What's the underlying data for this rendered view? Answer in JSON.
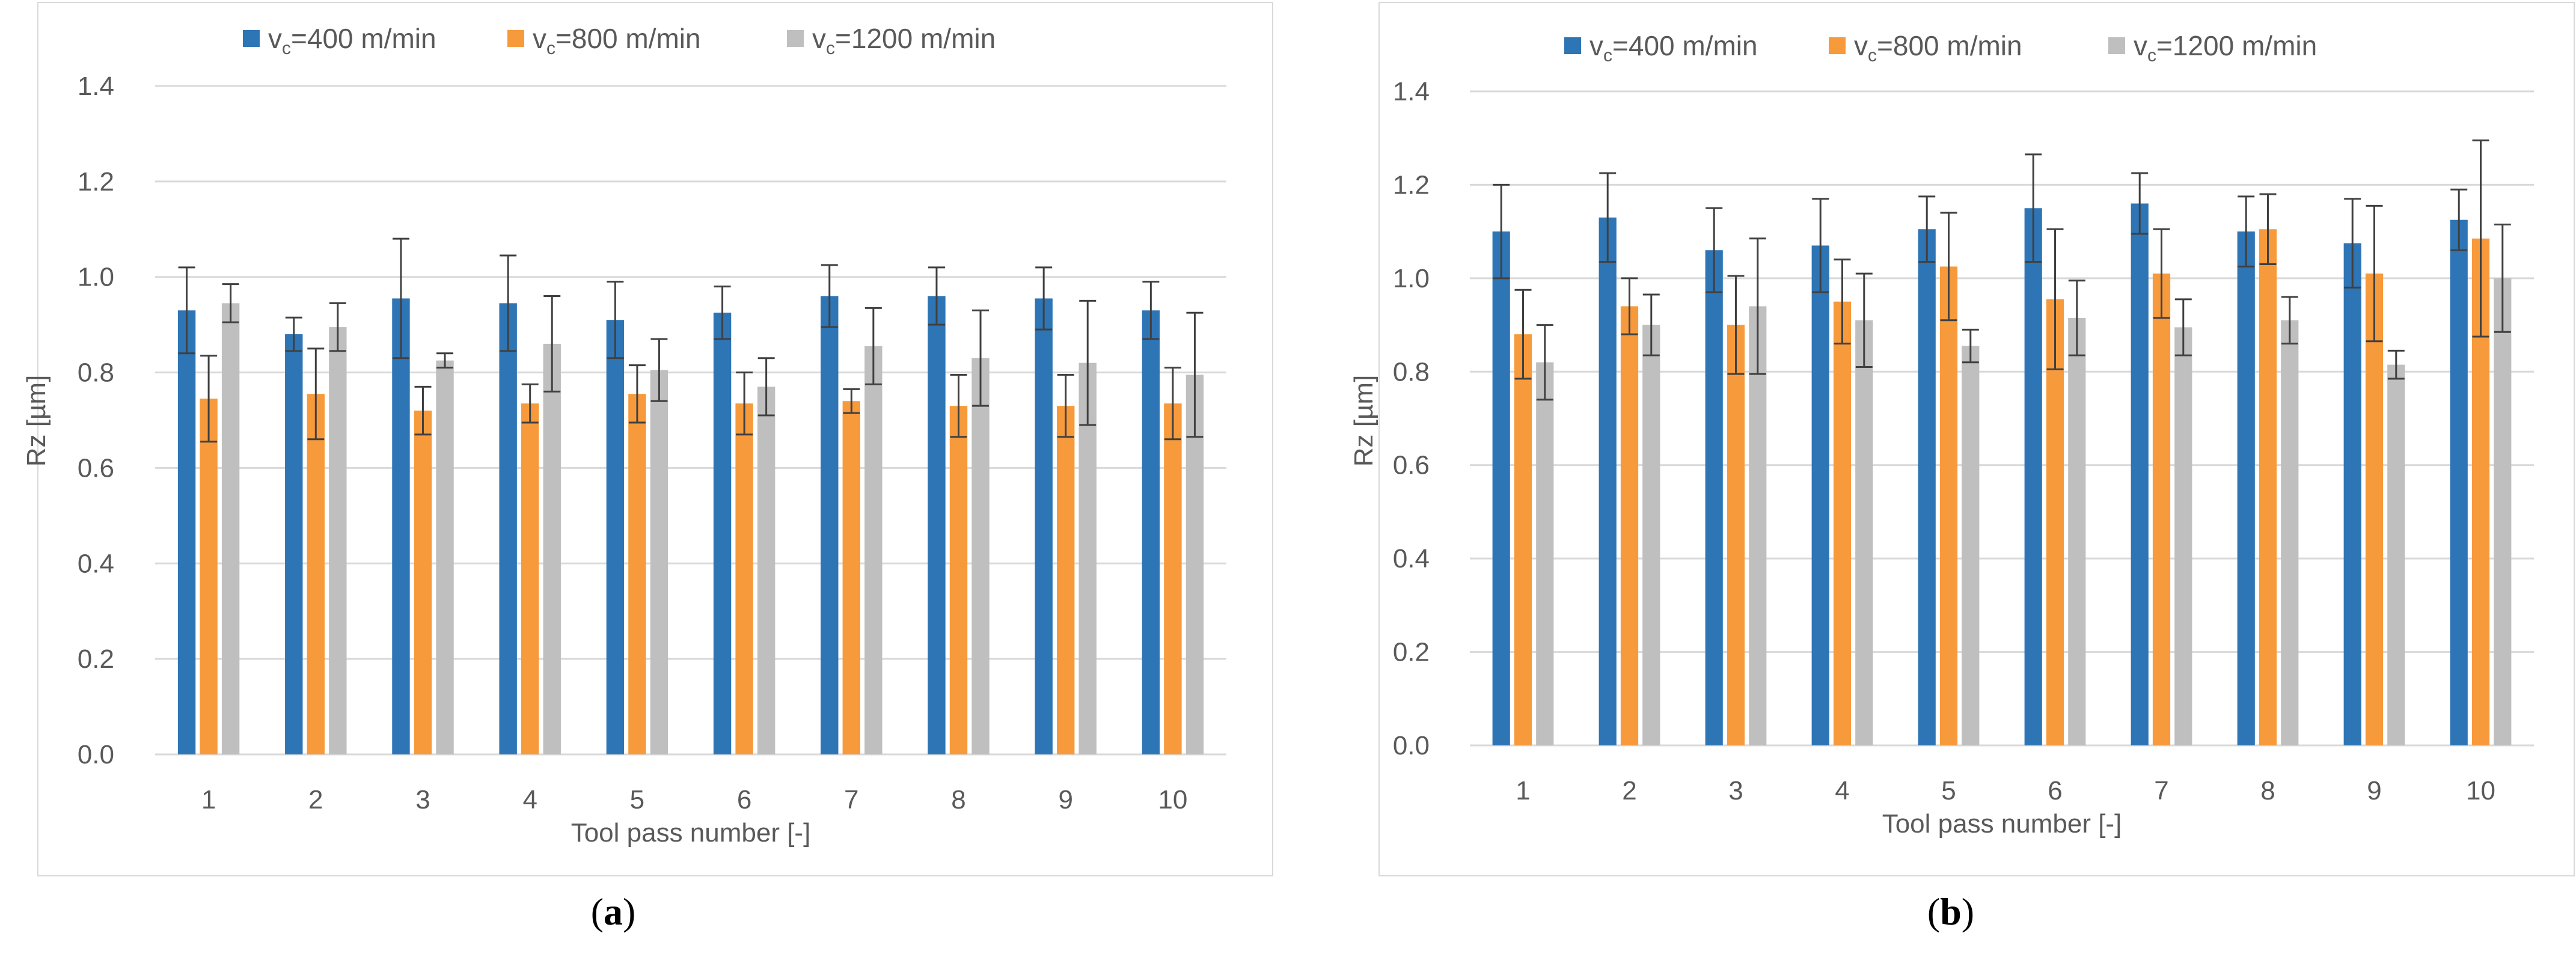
{
  "colors": {
    "series1": "#2e75b6",
    "series2": "#f79a3c",
    "series3": "#bfbfbf",
    "error": "#404040",
    "grid": "#d9d9d9"
  },
  "chart_data": [
    {
      "panel": "a",
      "type": "bar",
      "caption": {
        "open": "(",
        "letter": "a",
        "close": ")"
      },
      "xlabel": "Tool pass number [-]",
      "ylabel": "Rz [µm]",
      "ylim": [
        0,
        1.4
      ],
      "yticks": [
        "0.0",
        "0.2",
        "0.4",
        "0.6",
        "0.8",
        "1.0",
        "1.2",
        "1.4"
      ],
      "categories": [
        "1",
        "2",
        "3",
        "4",
        "5",
        "6",
        "7",
        "8",
        "9",
        "10"
      ],
      "legend_position": "top",
      "series": [
        {
          "name": "v",
          "sub": "c",
          "suffix": "=400 m/min",
          "values": [
            0.93,
            0.88,
            0.955,
            0.945,
            0.91,
            0.925,
            0.96,
            0.96,
            0.955,
            0.93
          ],
          "errors": [
            0.09,
            0.035,
            0.125,
            0.1,
            0.08,
            0.055,
            0.065,
            0.06,
            0.065,
            0.06
          ]
        },
        {
          "name": "v",
          "sub": "c",
          "suffix": "=800 m/min",
          "values": [
            0.745,
            0.755,
            0.72,
            0.735,
            0.755,
            0.735,
            0.74,
            0.73,
            0.73,
            0.735
          ],
          "errors": [
            0.09,
            0.095,
            0.05,
            0.04,
            0.06,
            0.065,
            0.025,
            0.065,
            0.065,
            0.075
          ]
        },
        {
          "name": "v",
          "sub": "c",
          "suffix": "=1200 m/min",
          "values": [
            0.945,
            0.895,
            0.825,
            0.86,
            0.805,
            0.77,
            0.855,
            0.83,
            0.82,
            0.795
          ],
          "errors": [
            0.04,
            0.05,
            0.015,
            0.1,
            0.065,
            0.06,
            0.08,
            0.1,
            0.13,
            0.13
          ]
        }
      ]
    },
    {
      "panel": "b",
      "type": "bar",
      "caption": {
        "open": "(",
        "letter": "b",
        "close": ")"
      },
      "xlabel": "Tool pass number [-]",
      "ylabel": "Rz [µm]",
      "ylim": [
        0,
        1.4
      ],
      "yticks": [
        "0.0",
        "0.2",
        "0.4",
        "0.6",
        "0.8",
        "1.0",
        "1.2",
        "1.4"
      ],
      "categories": [
        "1",
        "2",
        "3",
        "4",
        "5",
        "6",
        "7",
        "8",
        "9",
        "10"
      ],
      "legend_position": "top",
      "series": [
        {
          "name": "v",
          "sub": "c",
          "suffix": "=400 m/min",
          "values": [
            1.1,
            1.13,
            1.06,
            1.07,
            1.105,
            1.15,
            1.16,
            1.1,
            1.075,
            1.125
          ],
          "errors": [
            0.1,
            0.095,
            0.09,
            0.1,
            0.07,
            0.115,
            0.065,
            0.075,
            0.095,
            0.065
          ]
        },
        {
          "name": "v",
          "sub": "c",
          "suffix": "=800 m/min",
          "values": [
            0.88,
            0.94,
            0.9,
            0.95,
            1.025,
            0.955,
            1.01,
            1.105,
            1.01,
            1.085
          ],
          "errors": [
            0.095,
            0.06,
            0.105,
            0.09,
            0.115,
            0.15,
            0.095,
            0.075,
            0.145,
            0.21
          ]
        },
        {
          "name": "v",
          "sub": "c",
          "suffix": "=1200 m/min",
          "values": [
            0.82,
            0.9,
            0.94,
            0.91,
            0.855,
            0.915,
            0.895,
            0.91,
            0.815,
            1.0
          ],
          "errors": [
            0.08,
            0.065,
            0.145,
            0.1,
            0.035,
            0.08,
            0.06,
            0.05,
            0.03,
            0.115
          ]
        }
      ]
    }
  ]
}
